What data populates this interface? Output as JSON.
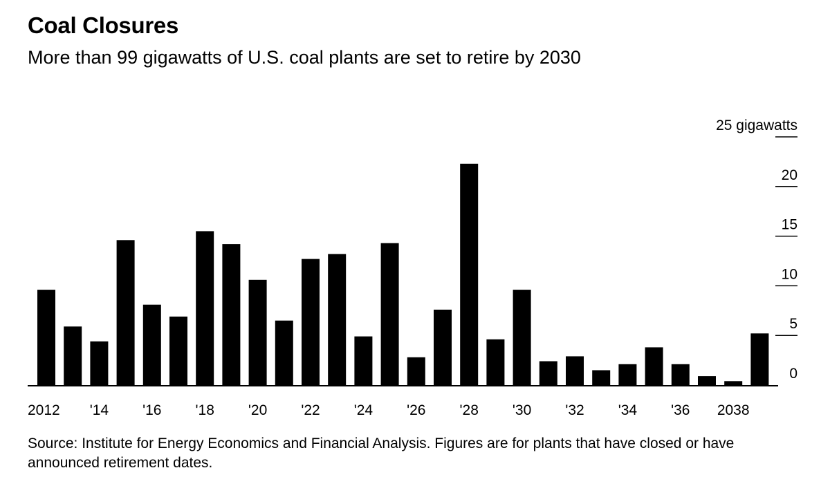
{
  "title": "Coal Closures",
  "subtitle": "More than 99 gigawatts of U.S. coal plants are set to retire by 2030",
  "source": "Source: Institute for Energy Economics and Financial Analysis. Figures are for plants that have closed or have announced retirement dates.",
  "chart_data": {
    "type": "bar",
    "title": "Coal Closures",
    "ylabel": "gigawatts",
    "ylim": [
      0,
      25
    ],
    "y_ticks": [
      0,
      5,
      10,
      15,
      20,
      25
    ],
    "y_tick_labels": [
      "0",
      "5",
      "10",
      "15",
      "20",
      "25 gigawatts"
    ],
    "categories": [
      "2012",
      "2013",
      "2014",
      "2015",
      "2016",
      "2017",
      "2018",
      "2019",
      "2020",
      "2021",
      "2022",
      "2023",
      "2024",
      "2025",
      "2026",
      "2027",
      "2028",
      "2029",
      "2030",
      "2031",
      "2032",
      "2033",
      "2034",
      "2035",
      "2036",
      "2037",
      "2038",
      "2039"
    ],
    "x_tick_labels": [
      "2012",
      "",
      "'14",
      "",
      "'16",
      "",
      "'18",
      "",
      "'20",
      "",
      "'22",
      "",
      "'24",
      "",
      "'26",
      "",
      "'28",
      "",
      "'30",
      "",
      "'32",
      "",
      "'34",
      "",
      "'36",
      "",
      "2038",
      ""
    ],
    "values": [
      9.6,
      5.9,
      4.4,
      14.6,
      8.1,
      6.9,
      15.5,
      14.2,
      10.6,
      6.5,
      12.7,
      13.2,
      4.9,
      14.3,
      2.8,
      7.6,
      22.3,
      4.6,
      9.6,
      2.4,
      2.9,
      1.5,
      2.1,
      3.8,
      2.1,
      0.9,
      0.4,
      5.2
    ]
  }
}
